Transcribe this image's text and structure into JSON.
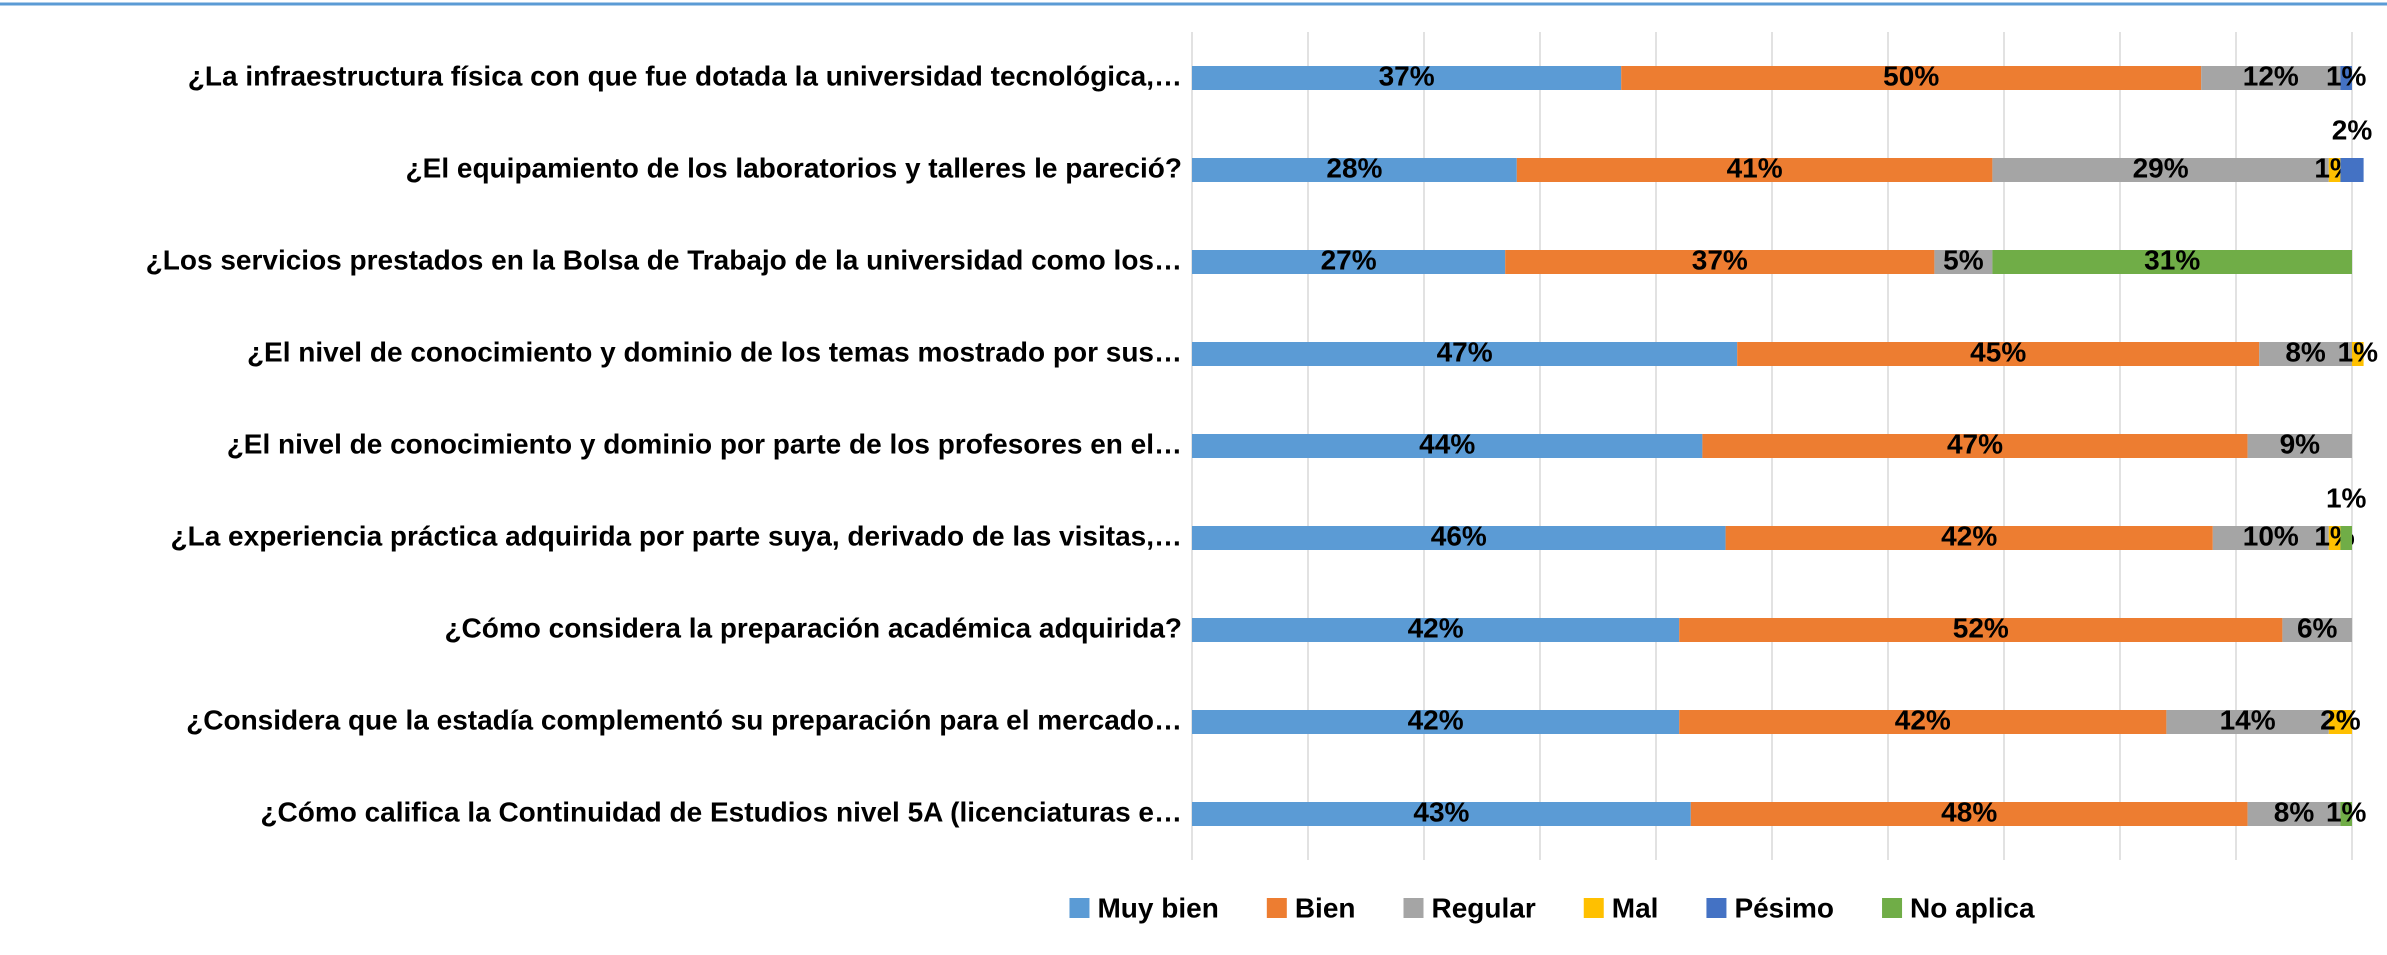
{
  "chart_data": {
    "type": "stacked-barh",
    "categories": [
      "¿La infraestructura física con que fue dotada la universidad tecnológica,…",
      "¿El equipamiento de los laboratorios y talleres le pareció?",
      "¿Los servicios prestados en la Bolsa de Trabajo de la universidad como los…",
      "¿El nivel de conocimiento y dominio de los temas mostrado por sus…",
      "¿El nivel de conocimiento y dominio por parte de los profesores en el…",
      "¿La experiencia práctica adquirida por parte suya, derivado de las visitas,…",
      "¿Cómo considera la preparación académica adquirida?",
      "¿Considera que la estadía complementó su preparación para el mercado…",
      "¿Cómo califica la Continuidad de Estudios nivel 5A (licenciaturas e…"
    ],
    "series": [
      {
        "name": "Muy bien",
        "color": "#5b9bd5",
        "values": [
          37,
          28,
          27,
          47,
          44,
          46,
          42,
          42,
          43
        ],
        "value_labels": [
          "37%",
          "28%",
          "27%",
          "47%",
          "44%",
          "46%",
          "42%",
          "42%",
          "43%"
        ]
      },
      {
        "name": "Bien",
        "color": "#ed7d31",
        "values": [
          50,
          41,
          37,
          45,
          47,
          42,
          52,
          42,
          48
        ],
        "value_labels": [
          "50%",
          "41%",
          "37%",
          "45%",
          "47%",
          "42%",
          "52%",
          "42%",
          "48%"
        ]
      },
      {
        "name": "Regular",
        "color": "#a5a5a5",
        "values": [
          12,
          29,
          5,
          8,
          9,
          10,
          6,
          14,
          8
        ],
        "value_labels": [
          "12%",
          "29%",
          "5%",
          "8%",
          "9%",
          "10%",
          "6%",
          "14%",
          "8%"
        ]
      },
      {
        "name": "Mal",
        "color": "#ffc000",
        "values": [
          null,
          1,
          null,
          1,
          null,
          1,
          null,
          2,
          null
        ],
        "value_labels": [
          null,
          "1%",
          null,
          "1%",
          null,
          "1%",
          null,
          "2%",
          null
        ]
      },
      {
        "name": "Pésimo",
        "color": "#4472c4",
        "values": [
          1,
          2,
          null,
          null,
          null,
          null,
          null,
          null,
          null
        ],
        "value_labels": [
          "1%",
          "2%",
          null,
          null,
          null,
          null,
          null,
          null,
          null
        ]
      },
      {
        "name": "No aplica",
        "color": "#70ad47",
        "values": [
          null,
          null,
          31,
          null,
          null,
          1,
          null,
          null,
          1
        ],
        "value_labels": [
          null,
          null,
          "31%",
          null,
          null,
          "1%",
          null,
          null,
          "1%"
        ]
      }
    ],
    "xlim": [
      0,
      100
    ],
    "xticks": [
      0,
      10,
      20,
      30,
      40,
      50,
      60,
      70,
      80,
      90,
      100
    ],
    "grid": true,
    "legend": "bottom"
  }
}
